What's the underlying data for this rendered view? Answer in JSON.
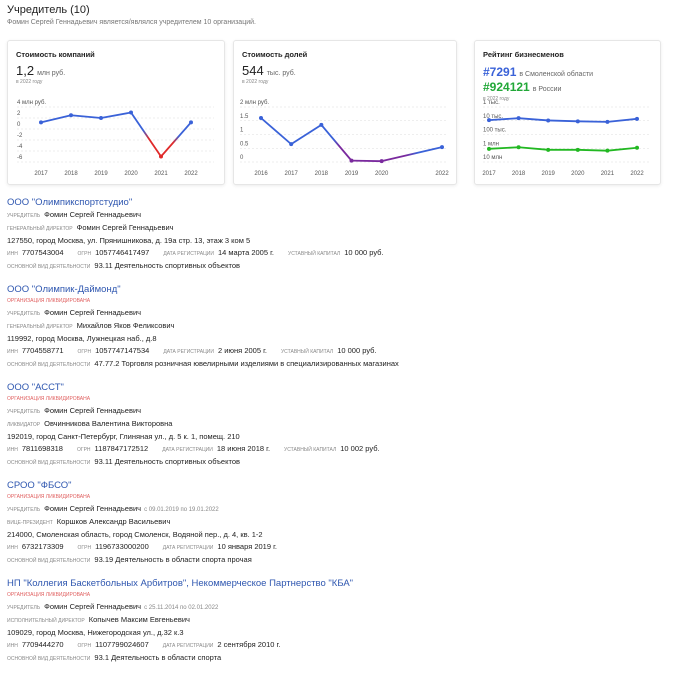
{
  "header": {
    "title": "Учредитель (10)",
    "subtitle": "Фомин Сергей Геннадьевич является/являлся учредителем 10 организаций."
  },
  "cards": [
    {
      "title": "Стоимость компаний",
      "lines": [
        {
          "value": "1,2",
          "unit": "млн руб."
        }
      ],
      "note": "в 2022 году",
      "chart": {
        "type": "line",
        "x": [
          2017,
          2018,
          2019,
          2020,
          2021,
          2022
        ],
        "xlim": [
          2017,
          2022
        ],
        "xticks": [
          2017,
          2018,
          2019,
          2020,
          2021,
          2022
        ],
        "ylim": [
          -6,
          4
        ],
        "yticks": [
          {
            "value": 4,
            "label": "4 млн руб."
          },
          2,
          0,
          -2,
          -4,
          -6
        ],
        "grid": true,
        "series": [
          {
            "color": "#3a62d8",
            "point_colors": [
              "#3a62d8",
              "#3a62d8",
              "#3a62d8",
              "#3a62d8",
              "#e02a2a",
              "#3a62d8"
            ],
            "values": [
              1.2,
              2.5,
              2.0,
              3.0,
              -5.0,
              1.2
            ]
          }
        ]
      }
    },
    {
      "title": "Стоимость долей",
      "lines": [
        {
          "value": "544",
          "unit": "тыс. руб."
        }
      ],
      "note": "в 2022 году",
      "chart": {
        "type": "line",
        "x": [
          2016,
          2017,
          2018,
          2019,
          2020,
          2022
        ],
        "xlim": [
          2016,
          2022
        ],
        "xticks": [
          2016,
          2017,
          2018,
          2019,
          2020,
          2022
        ],
        "ylim": [
          0,
          2
        ],
        "yticks": [
          {
            "value": 2,
            "label": "2 млн руб."
          },
          1.5,
          1,
          0.5,
          0
        ],
        "grid": true,
        "series": [
          {
            "color": "#3a62d8",
            "point_colors": [
              "#3a62d8",
              "#3a62d8",
              "#3a62d8",
              "#7a2a9e",
              "#7a2a9e",
              "#3a62d8"
            ],
            "values": [
              1.6,
              0.65,
              1.35,
              0.05,
              0.03,
              0.54
            ]
          }
        ]
      }
    },
    {
      "title": "Рейтинг бизнесменов",
      "lines": [
        {
          "value": "#7291",
          "unit": "в Смоленской области",
          "color": "#3a62d8"
        },
        {
          "value": "#924121",
          "unit": "в России",
          "color": "#22a838"
        }
      ],
      "note": "в 2022 году",
      "chart": {
        "type": "line",
        "x": [
          2017,
          2018,
          2019,
          2020,
          2021,
          2022
        ],
        "xlim": [
          2017,
          2022
        ],
        "xticks": [
          2017,
          2018,
          2019,
          2020,
          2021,
          2022
        ],
        "log_scale": true,
        "y_inverted": true,
        "ylim": [
          1000,
          10000000
        ],
        "yticks": [
          {
            "value": 1000,
            "label": "1 тыс."
          },
          {
            "value": 10000,
            "label": "10 тыс."
          },
          {
            "value": 100000,
            "label": "100 тыс."
          },
          {
            "value": 1000000,
            "label": "1 млн"
          },
          {
            "value": 10000000,
            "label": "10 млн"
          }
        ],
        "grid": true,
        "series": [
          {
            "color": "#3a62d8",
            "values": [
              9000,
              6500,
              9500,
              11000,
              12000,
              7291
            ]
          },
          {
            "color": "#22b822",
            "values": [
              1100000,
              850000,
              1300000,
              1300000,
              1500000,
              924121
            ]
          }
        ]
      }
    }
  ],
  "organizations": [
    {
      "name": "ООО \"Олимпикспортстудио\"",
      "people": [
        {
          "role": "УЧРЕДИТЕЛЬ",
          "name": "Фомин Сергей Геннадьевич"
        },
        {
          "role": "ГЕНЕРАЛЬНЫЙ ДИРЕКТОР",
          "name": "Фомин Сергей Геннадьевич"
        }
      ],
      "address": "127550, город Москва, ул. Прянишникова, д. 19а стр. 13, этаж 3 ком 5",
      "details": [
        {
          "label": "ИНН",
          "value": "7707543004"
        },
        {
          "label": "ОГРН",
          "value": "1057746417497"
        },
        {
          "label": "ДАТА РЕГИСТРАЦИИ",
          "value": "14 марта 2005 г."
        },
        {
          "label": "УСТАВНЫЙ КАПИТАЛ",
          "value": "10 000 руб."
        }
      ],
      "activity": {
        "label": "ОСНОВНОЙ ВИД ДЕЯТЕЛЬНОСТИ",
        "value": "93.11 Деятельность спортивных объектов"
      }
    },
    {
      "name": "ООО \"Олимпик-Даймонд\"",
      "status": "ОРГАНИЗАЦИЯ ЛИКВИДИРОВАНА",
      "people": [
        {
          "role": "УЧРЕДИТЕЛЬ",
          "name": "Фомин Сергей Геннадьевич"
        },
        {
          "role": "ГЕНЕРАЛЬНЫЙ ДИРЕКТОР",
          "name": "Михайлов Яков Феликсович"
        }
      ],
      "address": "119992, город Москва, Лужнецкая наб., д.8",
      "details": [
        {
          "label": "ИНН",
          "value": "7704558771"
        },
        {
          "label": "ОГРН",
          "value": "1057747147534"
        },
        {
          "label": "ДАТА РЕГИСТРАЦИИ",
          "value": "2 июня 2005 г."
        },
        {
          "label": "УСТАВНЫЙ КАПИТАЛ",
          "value": "10 000 руб."
        }
      ],
      "activity": {
        "label": "ОСНОВНОЙ ВИД ДЕЯТЕЛЬНОСТИ",
        "value": "47.77.2 Торговля розничная ювелирными изделиями в специализированных магазинах"
      }
    },
    {
      "name": "ООО \"АССТ\"",
      "status": "ОРГАНИЗАЦИЯ ЛИКВИДИРОВАНА",
      "people": [
        {
          "role": "УЧРЕДИТЕЛЬ",
          "name": "Фомин Сергей Геннадьевич"
        },
        {
          "role": "ЛИКВИДАТОР",
          "name": "Овчинникова Валентина Викторовна"
        }
      ],
      "address": "192019, город Санкт-Петербург, Глиняная ул., д. 5 к. 1, помещ. 210",
      "details": [
        {
          "label": "ИНН",
          "value": "7811698318"
        },
        {
          "label": "ОГРН",
          "value": "1187847172512"
        },
        {
          "label": "ДАТА РЕГИСТРАЦИИ",
          "value": "18 июня 2018 г."
        },
        {
          "label": "УСТАВНЫЙ КАПИТАЛ",
          "value": "10 002 руб."
        }
      ],
      "activity": {
        "label": "ОСНОВНОЙ ВИД ДЕЯТЕЛЬНОСТИ",
        "value": "93.11 Деятельность спортивных объектов"
      }
    },
    {
      "name": "СРОО \"ФБСО\"",
      "status": "ОРГАНИЗАЦИЯ ЛИКВИДИРОВАНА",
      "people": [
        {
          "role": "УЧРЕДИТЕЛЬ",
          "name": "Фомин Сергей Геннадьевич",
          "period": "с 09.01.2019 по 19.01.2022"
        },
        {
          "role": "ВИЦЕ-ПРЕЗИДЕНТ",
          "name": "Коршков Александр Васильевич"
        }
      ],
      "address": "214000, Смоленская область, город Смоленск, Водяной пер., д. 4, кв. 1-2",
      "details": [
        {
          "label": "ИНН",
          "value": "6732173309"
        },
        {
          "label": "ОГРН",
          "value": "1196733000200"
        },
        {
          "label": "ДАТА РЕГИСТРАЦИИ",
          "value": "10 января 2019 г."
        }
      ],
      "activity": {
        "label": "ОСНОВНОЙ ВИД ДЕЯТЕЛЬНОСТИ",
        "value": "93.19 Деятельность в области спорта прочая"
      }
    },
    {
      "name": "НП \"Коллегия Баскетбольных Арбитров\", Некоммерческое Партнерство \"КБА\"",
      "status": "ОРГАНИЗАЦИЯ ЛИКВИДИРОВАНА",
      "people": [
        {
          "role": "УЧРЕДИТЕЛЬ",
          "name": "Фомин Сергей Геннадьевич",
          "period": "с 25.11.2014 по 02.01.2022"
        },
        {
          "role": "ИСПОЛНИТЕЛЬНЫЙ ДИРЕКТОР",
          "name": "Копычев Максим Евгеньевич"
        }
      ],
      "address": "109029, город Москва, Нижегородская ул., д.32 к.3",
      "details": [
        {
          "label": "ИНН",
          "value": "7709444270"
        },
        {
          "label": "ОГРН",
          "value": "1107799024607"
        },
        {
          "label": "ДАТА РЕГИСТРАЦИИ",
          "value": "2 сентября 2010 г."
        }
      ],
      "activity": {
        "label": "ОСНОВНОЙ ВИД ДЕЯТЕЛЬНОСТИ",
        "value": "93.1 Деятельность в области спорта"
      }
    }
  ]
}
